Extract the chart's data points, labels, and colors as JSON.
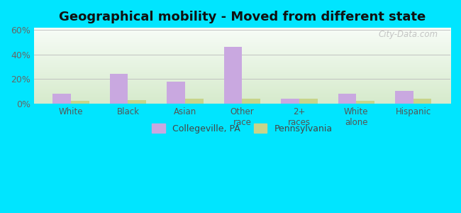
{
  "title": "Geographical mobility - Moved from different state",
  "categories": [
    "White",
    "Black",
    "Asian",
    "Other\nrace",
    "2+\nraces",
    "White\nalone",
    "Hispanic"
  ],
  "collegeville_values": [
    8,
    24,
    18,
    46,
    4,
    8,
    10
  ],
  "pennsylvania_values": [
    2,
    3,
    4,
    4,
    4,
    2,
    4
  ],
  "bar_color_collegeville": "#c9a8e0",
  "bar_color_pennsylvania": "#c8d48a",
  "background_color_outer": "#00e5ff",
  "yticks": [
    0,
    20,
    40,
    60
  ],
  "ylim": [
    0,
    62
  ],
  "legend_labels": [
    "Collegeville, PA",
    "Pennsylvania"
  ],
  "title_fontsize": 13,
  "bar_width": 0.32
}
